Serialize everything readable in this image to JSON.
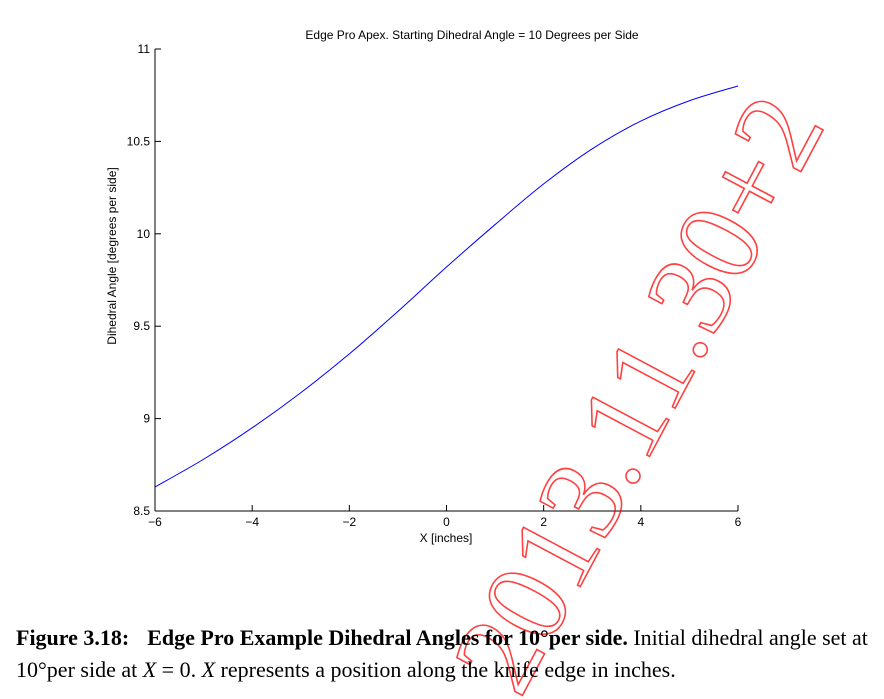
{
  "chart_data": {
    "type": "line",
    "title": "Edge Pro Apex. Starting Dihedral Angle = 10 Degrees per Side",
    "xlabel": "X [inches]",
    "ylabel": "Dihedral Angle [degrees per side]",
    "xlim": [
      -6,
      6
    ],
    "ylim": [
      8.5,
      11
    ],
    "xticks": [
      "−6",
      "−4",
      "−2",
      "0",
      "2",
      "4",
      "6"
    ],
    "yticks": [
      "8.5",
      "9",
      "9.5",
      "10",
      "10.5",
      "11"
    ],
    "grid": false,
    "series": [
      {
        "color": "#0000ff",
        "x": [
          -6,
          -5,
          -4,
          -3,
          -2,
          -1,
          0,
          1,
          2,
          3,
          4,
          5,
          6
        ],
        "y": [
          8.63,
          8.78,
          8.95,
          9.14,
          9.35,
          9.58,
          9.82,
          10.05,
          10.27,
          10.46,
          10.61,
          10.72,
          10.8
        ]
      }
    ]
  },
  "caption": {
    "label": "Figure 3.18:",
    "title": "Edge Pro Example Dihedral Angles for 10°per side.",
    "text_1": "Initial dihedral angle set at 10°per side at",
    "var_x1": "X",
    "eq": "= 0.",
    "var_x2": "X",
    "text_2": "represents a position along the knife edge in inches."
  },
  "watermark": {
    "text": "2013.11.30+2",
    "color": "#ff0000"
  }
}
